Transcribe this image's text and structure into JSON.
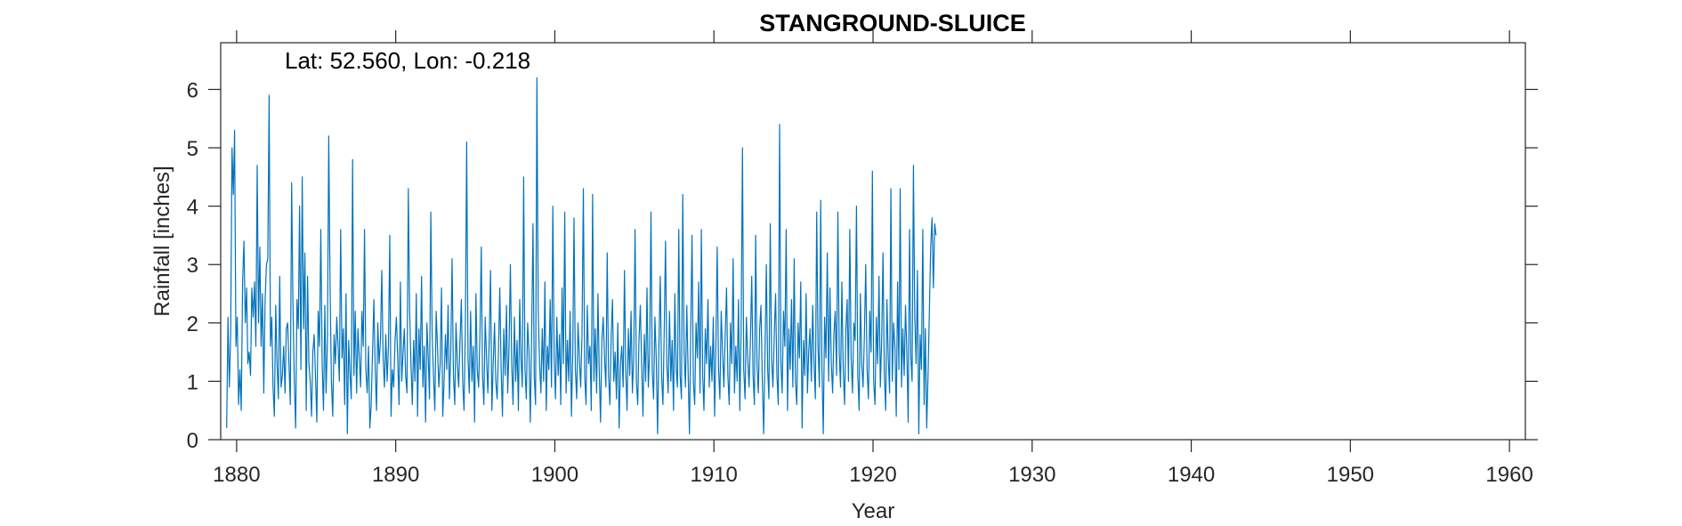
{
  "chart_data": {
    "type": "line",
    "title": "STANGROUND-SLUICE",
    "annotation": "Lat: 52.560, Lon: -0.218",
    "xlabel": "Year",
    "ylabel": "Rainfall [inches]",
    "xlim": [
      1879,
      1961
    ],
    "ylim": [
      0,
      6.8
    ],
    "xticks": [
      1880,
      1890,
      1900,
      1910,
      1920,
      1930,
      1940,
      1950,
      1960
    ],
    "xtick_labels": [
      "1880",
      "1890",
      "1900",
      "1910",
      "1920",
      "1930",
      "1940",
      "1950",
      "1960"
    ],
    "yticks": [
      0,
      1,
      2,
      3,
      4,
      5,
      6
    ],
    "ytick_labels": [
      "0",
      "1",
      "2",
      "3",
      "4",
      "5",
      "6"
    ],
    "grid": false,
    "legend": false,
    "series": [
      {
        "color": "#0072BD",
        "x_start": 1879.375,
        "x_step": 0.0833333,
        "values": [
          0.2,
          2.1,
          0.9,
          1.8,
          5.0,
          4.2,
          5.3,
          1.6,
          2.1,
          0.6,
          1.2,
          0.5,
          2.7,
          3.4,
          2.0,
          2.6,
          1.3,
          1.5,
          1.1,
          2.6,
          2.1,
          2.7,
          1.6,
          4.7,
          2.0,
          3.3,
          1.6,
          2.5,
          0.8,
          2.4,
          3.0,
          3.1,
          5.9,
          1.6,
          2.1,
          0.9,
          0.4,
          2.3,
          1.3,
          0.7,
          2.8,
          0.9,
          1.1,
          1.6,
          0.8,
          1.9,
          2.0,
          1.3,
          0.6,
          4.4,
          2.3,
          1.0,
          0.2,
          2.4,
          1.9,
          4.0,
          1.2,
          4.5,
          1.9,
          3.2,
          0.5,
          2.8,
          1.3,
          1.0,
          0.4,
          1.5,
          1.8,
          1.1,
          0.3,
          2.2,
          1.6,
          3.6,
          1.3,
          0.5,
          2.3,
          0.8,
          1.7,
          5.2,
          2.6,
          1.0,
          0.4,
          1.8,
          1.3,
          2.1,
          1.6,
          1.0,
          3.6,
          1.4,
          1.9,
          0.6,
          2.5,
          0.1,
          1.7,
          1.1,
          0.7,
          4.8,
          1.1,
          2.2,
          0.8,
          1.9,
          1.4,
          0.9,
          2.2,
          1.6,
          3.6,
          1.2,
          0.8,
          1.6,
          0.2,
          0.6,
          1.5,
          2.4,
          1.2,
          0.5,
          2.0,
          1.3,
          1.7,
          2.9,
          1.4,
          0.9,
          1.8,
          1.0,
          1.6,
          3.5,
          0.4,
          1.2,
          0.9,
          1.7,
          2.1,
          1.4,
          0.6,
          2.7,
          1.0,
          1.5,
          1.9,
          1.1,
          0.8,
          4.3,
          2.2,
          1.3,
          0.6,
          1.7,
          1.0,
          2.5,
          0.4,
          1.9,
          1.2,
          2.8,
          0.9,
          1.6,
          0.3,
          2.0,
          1.4,
          0.7,
          3.9,
          1.8,
          1.1,
          0.5,
          2.2,
          1.6,
          0.9,
          1.3,
          2.6,
          0.4,
          1.0,
          1.8,
          1.2,
          2.3,
          0.7,
          1.5,
          3.1,
          1.1,
          0.6,
          2.0,
          1.3,
          0.9,
          1.7,
          2.4,
          1.0,
          0.5,
          1.9,
          5.1,
          1.4,
          0.8,
          2.2,
          1.0,
          1.6,
          0.3,
          2.5,
          1.2,
          0.9,
          1.8,
          3.3,
          1.1,
          0.6,
          2.1,
          1.4,
          0.8,
          1.7,
          2.9,
          0.5,
          1.3,
          2.0,
          1.0,
          0.7,
          1.5,
          2.6,
          1.2,
          0.4,
          1.9,
          1.1,
          2.3,
          0.8,
          1.6,
          3.0,
          1.3,
          0.6,
          2.1,
          1.0,
          1.7,
          0.5,
          2.4,
          1.4,
          0.9,
          4.5,
          1.2,
          0.7,
          2.0,
          1.5,
          0.3,
          1.8,
          3.7,
          1.1,
          0.6,
          6.2,
          2.2,
          1.3,
          0.8,
          1.9,
          1.0,
          2.7,
          0.5,
          1.6,
          1.2,
          2.4,
          0.9,
          4.0,
          1.4,
          0.7,
          2.1,
          1.1,
          1.8,
          0.6,
          2.6,
          1.3,
          3.9,
          0.8,
          1.7,
          1.0,
          2.2,
          0.4,
          1.5,
          3.8,
          1.2,
          0.7,
          2.0,
          1.4,
          0.9,
          1.8,
          4.3,
          1.1,
          0.6,
          2.3,
          1.3,
          1.6,
          0.5,
          4.2,
          1.0,
          1.9,
          0.8,
          2.5,
          1.2,
          0.3,
          1.7,
          2.1,
          1.4,
          0.9,
          3.2,
          1.1,
          0.6,
          1.8,
          2.4,
          1.0,
          1.5,
          0.7,
          2.0,
          0.2,
          1.3,
          1.6,
          0.9,
          2.9,
          1.2,
          0.5,
          1.9,
          1.1,
          2.2,
          0.8,
          1.4,
          3.6,
          1.0,
          0.6,
          1.7,
          2.3,
          1.3,
          0.4,
          1.8,
          1.0,
          2.6,
          0.9,
          1.5,
          3.9,
          1.2,
          0.7,
          2.1,
          1.4,
          0.1,
          1.6,
          2.8,
          1.1,
          0.6,
          1.9,
          3.4,
          1.3,
          0.8,
          2.2,
          1.0,
          1.7,
          0.5,
          2.5,
          1.2,
          0.9,
          3.6,
          1.1,
          0.7,
          4.2,
          1.5,
          0.9,
          2.3,
          1.2,
          0.1,
          1.8,
          3.5,
          1.0,
          0.6,
          2.0,
          1.4,
          2.7,
          0.8,
          3.6,
          1.1,
          0.5,
          1.9,
          1.3,
          2.4,
          0.9,
          1.6,
          1.0,
          2.1,
          0.4,
          1.7,
          3.3,
          1.2,
          0.7,
          2.2,
          1.5,
          0.9,
          1.8,
          2.6,
          1.1,
          0.6,
          2.0,
          1.3,
          3.1,
          0.8,
          1.6,
          1.0,
          2.4,
          0.5,
          1.9,
          5.0,
          1.2,
          0.7,
          2.1,
          1.4,
          0.9,
          1.7,
          2.8,
          1.1,
          0.6,
          3.5,
          1.3,
          0.8,
          1.9,
          2.3,
          1.0,
          0.1,
          1.5,
          3.0,
          1.2,
          0.7,
          3.7,
          1.4,
          0.9,
          1.8,
          2.5,
          1.1,
          0.6,
          5.4,
          1.3,
          0.8,
          2.2,
          1.6,
          3.6,
          0.5,
          1.9,
          1.2,
          2.4,
          0.9,
          3.1,
          1.0,
          0.6,
          2.0,
          1.4,
          2.7,
          0.2,
          1.7,
          1.1,
          2.5,
          0.8,
          1.5,
          1.9,
          1.0,
          2.3,
          1.3,
          0.7,
          3.9,
          1.6,
          0.9,
          4.1,
          1.2,
          0.1,
          2.1,
          1.4,
          3.2,
          1.0,
          2.6,
          1.3,
          0.8,
          1.8,
          2.2,
          1.1,
          3.9,
          1.5,
          0.9,
          2.7,
          1.2,
          0.6,
          1.9,
          2.4,
          1.0,
          3.6,
          1.4,
          0.8,
          2.0,
          1.7,
          4.0,
          1.1,
          0.5,
          2.5,
          1.3,
          0.9,
          1.8,
          3.0,
          1.2,
          0.7,
          2.2,
          1.5,
          4.6,
          1.0,
          0.6,
          2.1,
          1.3,
          2.8,
          0.9,
          1.7,
          3.2,
          1.1,
          0.5,
          2.4,
          1.4,
          0.8,
          4.3,
          1.0,
          2.0,
          1.6,
          0.4,
          2.7,
          1.2,
          4.3,
          0.9,
          1.9,
          1.1,
          2.3,
          1.5,
          0.3,
          3.6,
          1.4,
          1.0,
          4.7,
          2.1,
          1.3,
          2.9,
          0.1,
          1.8,
          1.2,
          3.6,
          0.6,
          1.9,
          0.2,
          1.1,
          2.2,
          3.3,
          3.8,
          2.6,
          3.7,
          3.5
        ]
      }
    ]
  }
}
